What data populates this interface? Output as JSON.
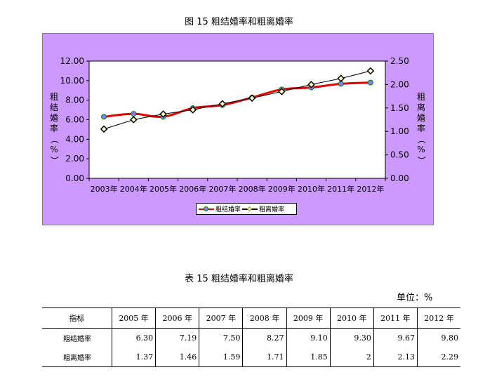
{
  "figure_title": "图 15 粗结婚率和粗离婚率",
  "chart_data": {
    "type": "line",
    "categories": [
      "2003年",
      "2004年",
      "2005年",
      "2006年",
      "2007年",
      "2008年",
      "2009年",
      "2010年",
      "2011年",
      "2012年"
    ],
    "series": [
      {
        "name": "粗结婚率",
        "axis": "left",
        "color": "#e00000",
        "marker": "circle",
        "marker_color": "#8080ff",
        "values": [
          6.3,
          6.6,
          6.3,
          7.19,
          7.5,
          8.27,
          9.1,
          9.3,
          9.67,
          9.8
        ]
      },
      {
        "name": "粗离婚率",
        "axis": "right",
        "color": "#000000",
        "marker": "diamond",
        "marker_color": "#ffffcc",
        "values": [
          1.05,
          1.25,
          1.37,
          1.46,
          1.59,
          1.71,
          1.85,
          2.0,
          2.13,
          2.29
        ]
      }
    ],
    "ylabel": "粗结婚率（%）",
    "y2label": "粗离婚率（%）",
    "ylim": [
      0,
      12
    ],
    "y2lim": [
      0,
      2.5
    ],
    "yticks": [
      "0.00",
      "2.00",
      "4.00",
      "6.00",
      "8.00",
      "10.00",
      "12.00"
    ],
    "y2ticks": [
      "0.00",
      "0.50",
      "1.00",
      "1.50",
      "2.00",
      "2.50"
    ],
    "grid": false,
    "plot_background": "#ffffff",
    "chart_background": "#cc99ff",
    "legend_position": "bottom"
  },
  "table_title": "表 15 粗结婚率和粗离婚率",
  "unit_label": "单位：%",
  "table": {
    "header": [
      "指标",
      "2005 年",
      "2006 年",
      "2007 年",
      "2008 年",
      "2009 年",
      "2010 年",
      "2011 年",
      "2012 年"
    ],
    "rows": [
      {
        "label": "粗结婚率",
        "values": [
          "6.30",
          "7.19",
          "7.50",
          "8.27",
          "9.10",
          "9.30",
          "9.67",
          "9.80"
        ]
      },
      {
        "label": "粗离婚率",
        "values": [
          "1.37",
          "1.46",
          "1.59",
          "1.71",
          "1.85",
          "2",
          "2.13",
          "2.29"
        ]
      }
    ]
  }
}
